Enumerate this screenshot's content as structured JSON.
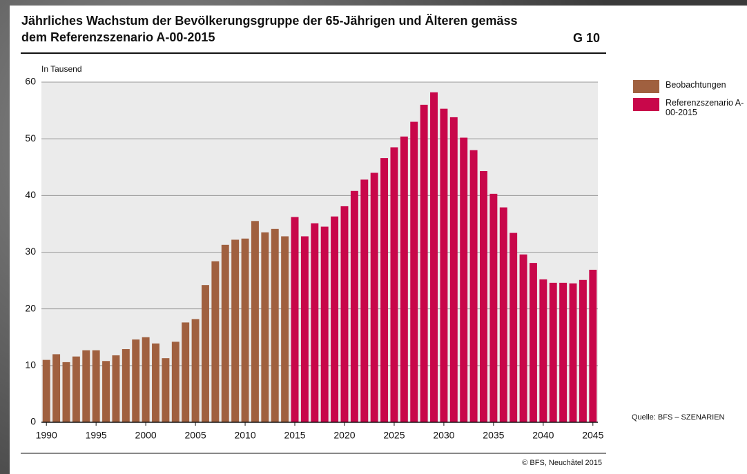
{
  "chart_data": {
    "type": "bar",
    "title": "Jährliches Wachstum der Bevölkerungsgruppe der 65-Jährigen und Älteren gemäss dem Referenzszenario A-00-2015",
    "figure_id": "G 10",
    "y_label": "In Tausend",
    "source": "Quelle: BFS – SZENARIEN",
    "copyright": "© BFS, Neuchâtel 2015",
    "x": [
      1990,
      1991,
      1992,
      1993,
      1994,
      1995,
      1996,
      1997,
      1998,
      1999,
      2000,
      2001,
      2002,
      2003,
      2004,
      2005,
      2006,
      2007,
      2008,
      2009,
      2010,
      2011,
      2012,
      2013,
      2014,
      2015,
      2016,
      2017,
      2018,
      2019,
      2020,
      2021,
      2022,
      2023,
      2024,
      2025,
      2026,
      2027,
      2028,
      2029,
      2030,
      2031,
      2032,
      2033,
      2034,
      2035,
      2036,
      2037,
      2038,
      2039,
      2040,
      2041,
      2042,
      2043,
      2044,
      2045
    ],
    "series": [
      {
        "name": "Beobachtungen",
        "color": "#a0603f",
        "values": [
          11.0,
          12.0,
          10.6,
          11.6,
          12.7,
          12.7,
          10.8,
          11.8,
          12.9,
          14.6,
          15.0,
          13.9,
          11.3,
          14.2,
          17.6,
          18.2,
          24.2,
          28.4,
          31.3,
          32.2,
          32.4,
          35.5,
          33.5,
          34.1,
          32.8,
          null,
          null,
          null,
          null,
          null,
          null,
          null,
          null,
          null,
          null,
          null,
          null,
          null,
          null,
          null,
          null,
          null,
          null,
          null,
          null,
          null,
          null,
          null,
          null,
          null,
          null,
          null,
          null,
          null,
          null,
          null
        ]
      },
      {
        "name": "Referenzszenario A-00-2015",
        "color": "#c8074a",
        "values": [
          null,
          null,
          null,
          null,
          null,
          null,
          null,
          null,
          null,
          null,
          null,
          null,
          null,
          null,
          null,
          null,
          null,
          null,
          null,
          null,
          null,
          null,
          null,
          null,
          null,
          36.2,
          32.8,
          35.1,
          34.5,
          36.3,
          38.1,
          40.8,
          42.8,
          44.0,
          46.6,
          48.5,
          50.4,
          53.0,
          56.0,
          58.2,
          55.3,
          53.8,
          50.2,
          48.0,
          44.3,
          40.3,
          37.9,
          33.4,
          29.6,
          28.1,
          25.2,
          24.6,
          24.6,
          24.5,
          25.1,
          26.9
        ]
      }
    ],
    "xlim": [
      1989.5,
      2045.5
    ],
    "xticks": [
      1990,
      1995,
      2000,
      2005,
      2010,
      2015,
      2020,
      2025,
      2030,
      2035,
      2040,
      2045
    ],
    "ylim": [
      0,
      60
    ],
    "yticks": [
      0,
      10,
      20,
      30,
      40,
      50,
      60
    ],
    "grid": true
  }
}
